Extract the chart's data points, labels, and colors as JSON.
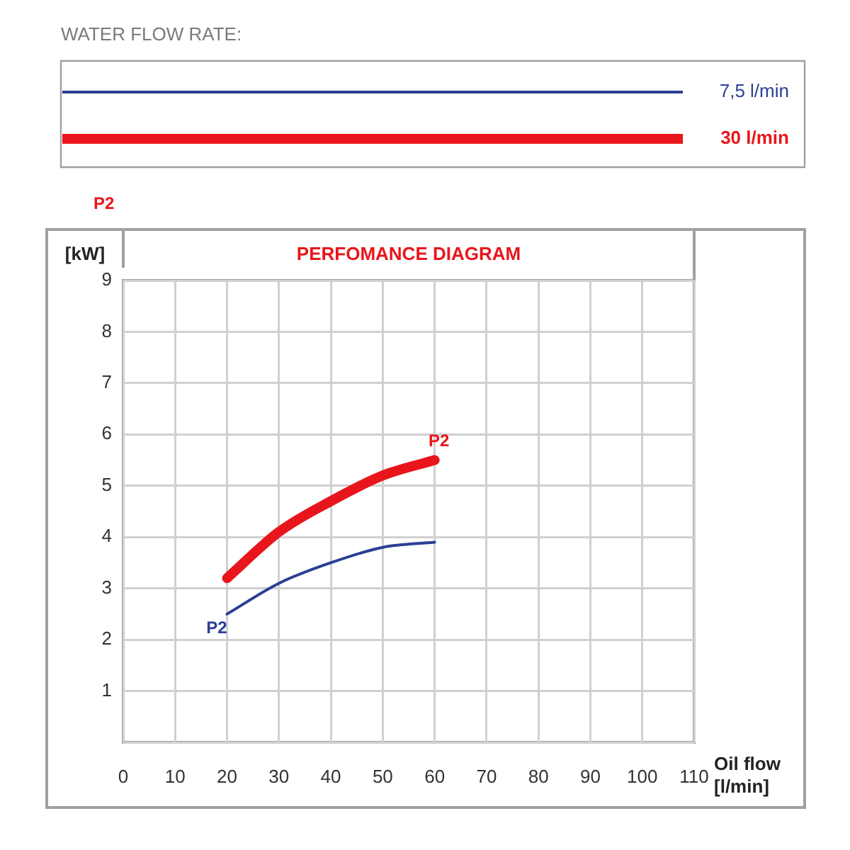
{
  "chart_data": {
    "type": "line",
    "title": "PERFOMANCE DIAGRAM",
    "legend_title": "WATER FLOW RATE:",
    "xlabel": "Oil flow [l/min]",
    "ylabel": "[kW]",
    "x": [
      20,
      30,
      40,
      50,
      60
    ],
    "series": [
      {
        "name": "7,5 l/min",
        "color": "#2b3f94",
        "values": [
          2.5,
          3.1,
          3.5,
          3.8,
          3.9
        ]
      },
      {
        "name": "30 l/min",
        "color": "#e8161c",
        "values": [
          3.2,
          4.1,
          4.7,
          5.2,
          5.5
        ]
      }
    ],
    "xlim": [
      0,
      110
    ],
    "xticks": [
      0,
      10,
      20,
      30,
      40,
      50,
      60,
      70,
      80,
      90,
      100,
      110
    ],
    "ylim": [
      0,
      9
    ],
    "yticks": [
      {
        "value": 0,
        "label": null
      },
      1,
      2,
      3,
      4,
      5,
      6,
      7,
      8,
      9
    ],
    "grid": true,
    "legend": "top",
    "marker": "none",
    "line_style": "solid",
    "annotations": [
      "P2",
      {
        "text": "P2",
        "x": 60,
        "y": 5.5
      },
      {
        "text": "P2",
        "x": 20,
        "y": 2.5
      }
    ]
  }
}
